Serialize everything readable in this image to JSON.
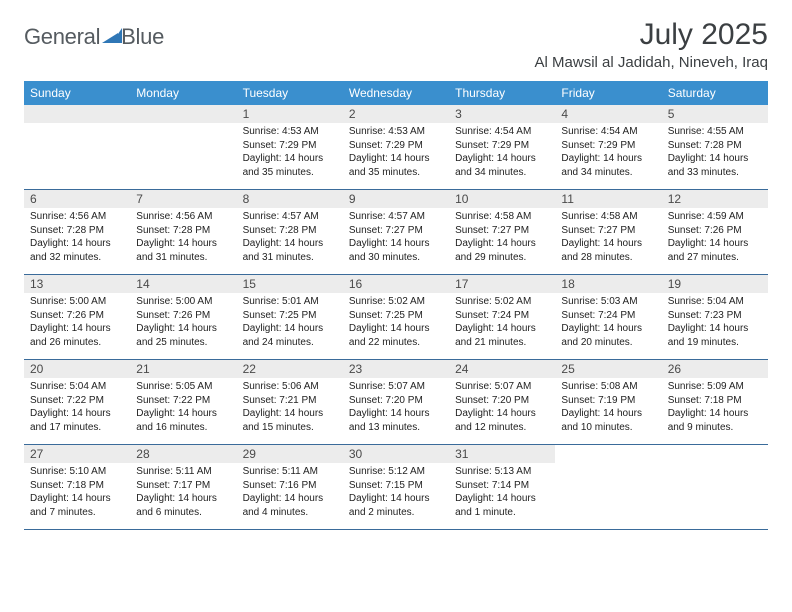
{
  "brand": {
    "name_part1": "General",
    "name_part2": "Blue"
  },
  "colors": {
    "header_bg": "#3a8fce",
    "header_text": "#ffffff",
    "daynum_bg": "#ececec",
    "daynum_text": "#4a4a4a",
    "week_border": "#3a6b9a",
    "title_text": "#3b3f42",
    "logo_text": "#555b60",
    "logo_mark": "#2f77b6"
  },
  "title": {
    "month": "July 2025",
    "location": "Al Mawsil al Jadidah, Nineveh, Iraq"
  },
  "weekdays": [
    "Sunday",
    "Monday",
    "Tuesday",
    "Wednesday",
    "Thursday",
    "Friday",
    "Saturday"
  ],
  "weeks": [
    [
      null,
      null,
      {
        "n": "1",
        "sr": "Sunrise: 4:53 AM",
        "ss": "Sunset: 7:29 PM",
        "dl1": "Daylight: 14 hours",
        "dl2": "and 35 minutes."
      },
      {
        "n": "2",
        "sr": "Sunrise: 4:53 AM",
        "ss": "Sunset: 7:29 PM",
        "dl1": "Daylight: 14 hours",
        "dl2": "and 35 minutes."
      },
      {
        "n": "3",
        "sr": "Sunrise: 4:54 AM",
        "ss": "Sunset: 7:29 PM",
        "dl1": "Daylight: 14 hours",
        "dl2": "and 34 minutes."
      },
      {
        "n": "4",
        "sr": "Sunrise: 4:54 AM",
        "ss": "Sunset: 7:29 PM",
        "dl1": "Daylight: 14 hours",
        "dl2": "and 34 minutes."
      },
      {
        "n": "5",
        "sr": "Sunrise: 4:55 AM",
        "ss": "Sunset: 7:28 PM",
        "dl1": "Daylight: 14 hours",
        "dl2": "and 33 minutes."
      }
    ],
    [
      {
        "n": "6",
        "sr": "Sunrise: 4:56 AM",
        "ss": "Sunset: 7:28 PM",
        "dl1": "Daylight: 14 hours",
        "dl2": "and 32 minutes."
      },
      {
        "n": "7",
        "sr": "Sunrise: 4:56 AM",
        "ss": "Sunset: 7:28 PM",
        "dl1": "Daylight: 14 hours",
        "dl2": "and 31 minutes."
      },
      {
        "n": "8",
        "sr": "Sunrise: 4:57 AM",
        "ss": "Sunset: 7:28 PM",
        "dl1": "Daylight: 14 hours",
        "dl2": "and 31 minutes."
      },
      {
        "n": "9",
        "sr": "Sunrise: 4:57 AM",
        "ss": "Sunset: 7:27 PM",
        "dl1": "Daylight: 14 hours",
        "dl2": "and 30 minutes."
      },
      {
        "n": "10",
        "sr": "Sunrise: 4:58 AM",
        "ss": "Sunset: 7:27 PM",
        "dl1": "Daylight: 14 hours",
        "dl2": "and 29 minutes."
      },
      {
        "n": "11",
        "sr": "Sunrise: 4:58 AM",
        "ss": "Sunset: 7:27 PM",
        "dl1": "Daylight: 14 hours",
        "dl2": "and 28 minutes."
      },
      {
        "n": "12",
        "sr": "Sunrise: 4:59 AM",
        "ss": "Sunset: 7:26 PM",
        "dl1": "Daylight: 14 hours",
        "dl2": "and 27 minutes."
      }
    ],
    [
      {
        "n": "13",
        "sr": "Sunrise: 5:00 AM",
        "ss": "Sunset: 7:26 PM",
        "dl1": "Daylight: 14 hours",
        "dl2": "and 26 minutes."
      },
      {
        "n": "14",
        "sr": "Sunrise: 5:00 AM",
        "ss": "Sunset: 7:26 PM",
        "dl1": "Daylight: 14 hours",
        "dl2": "and 25 minutes."
      },
      {
        "n": "15",
        "sr": "Sunrise: 5:01 AM",
        "ss": "Sunset: 7:25 PM",
        "dl1": "Daylight: 14 hours",
        "dl2": "and 24 minutes."
      },
      {
        "n": "16",
        "sr": "Sunrise: 5:02 AM",
        "ss": "Sunset: 7:25 PM",
        "dl1": "Daylight: 14 hours",
        "dl2": "and 22 minutes."
      },
      {
        "n": "17",
        "sr": "Sunrise: 5:02 AM",
        "ss": "Sunset: 7:24 PM",
        "dl1": "Daylight: 14 hours",
        "dl2": "and 21 minutes."
      },
      {
        "n": "18",
        "sr": "Sunrise: 5:03 AM",
        "ss": "Sunset: 7:24 PM",
        "dl1": "Daylight: 14 hours",
        "dl2": "and 20 minutes."
      },
      {
        "n": "19",
        "sr": "Sunrise: 5:04 AM",
        "ss": "Sunset: 7:23 PM",
        "dl1": "Daylight: 14 hours",
        "dl2": "and 19 minutes."
      }
    ],
    [
      {
        "n": "20",
        "sr": "Sunrise: 5:04 AM",
        "ss": "Sunset: 7:22 PM",
        "dl1": "Daylight: 14 hours",
        "dl2": "and 17 minutes."
      },
      {
        "n": "21",
        "sr": "Sunrise: 5:05 AM",
        "ss": "Sunset: 7:22 PM",
        "dl1": "Daylight: 14 hours",
        "dl2": "and 16 minutes."
      },
      {
        "n": "22",
        "sr": "Sunrise: 5:06 AM",
        "ss": "Sunset: 7:21 PM",
        "dl1": "Daylight: 14 hours",
        "dl2": "and 15 minutes."
      },
      {
        "n": "23",
        "sr": "Sunrise: 5:07 AM",
        "ss": "Sunset: 7:20 PM",
        "dl1": "Daylight: 14 hours",
        "dl2": "and 13 minutes."
      },
      {
        "n": "24",
        "sr": "Sunrise: 5:07 AM",
        "ss": "Sunset: 7:20 PM",
        "dl1": "Daylight: 14 hours",
        "dl2": "and 12 minutes."
      },
      {
        "n": "25",
        "sr": "Sunrise: 5:08 AM",
        "ss": "Sunset: 7:19 PM",
        "dl1": "Daylight: 14 hours",
        "dl2": "and 10 minutes."
      },
      {
        "n": "26",
        "sr": "Sunrise: 5:09 AM",
        "ss": "Sunset: 7:18 PM",
        "dl1": "Daylight: 14 hours",
        "dl2": "and 9 minutes."
      }
    ],
    [
      {
        "n": "27",
        "sr": "Sunrise: 5:10 AM",
        "ss": "Sunset: 7:18 PM",
        "dl1": "Daylight: 14 hours",
        "dl2": "and 7 minutes."
      },
      {
        "n": "28",
        "sr": "Sunrise: 5:11 AM",
        "ss": "Sunset: 7:17 PM",
        "dl1": "Daylight: 14 hours",
        "dl2": "and 6 minutes."
      },
      {
        "n": "29",
        "sr": "Sunrise: 5:11 AM",
        "ss": "Sunset: 7:16 PM",
        "dl1": "Daylight: 14 hours",
        "dl2": "and 4 minutes."
      },
      {
        "n": "30",
        "sr": "Sunrise: 5:12 AM",
        "ss": "Sunset: 7:15 PM",
        "dl1": "Daylight: 14 hours",
        "dl2": "and 2 minutes."
      },
      {
        "n": "31",
        "sr": "Sunrise: 5:13 AM",
        "ss": "Sunset: 7:14 PM",
        "dl1": "Daylight: 14 hours",
        "dl2": "and 1 minute."
      },
      null,
      null
    ]
  ]
}
